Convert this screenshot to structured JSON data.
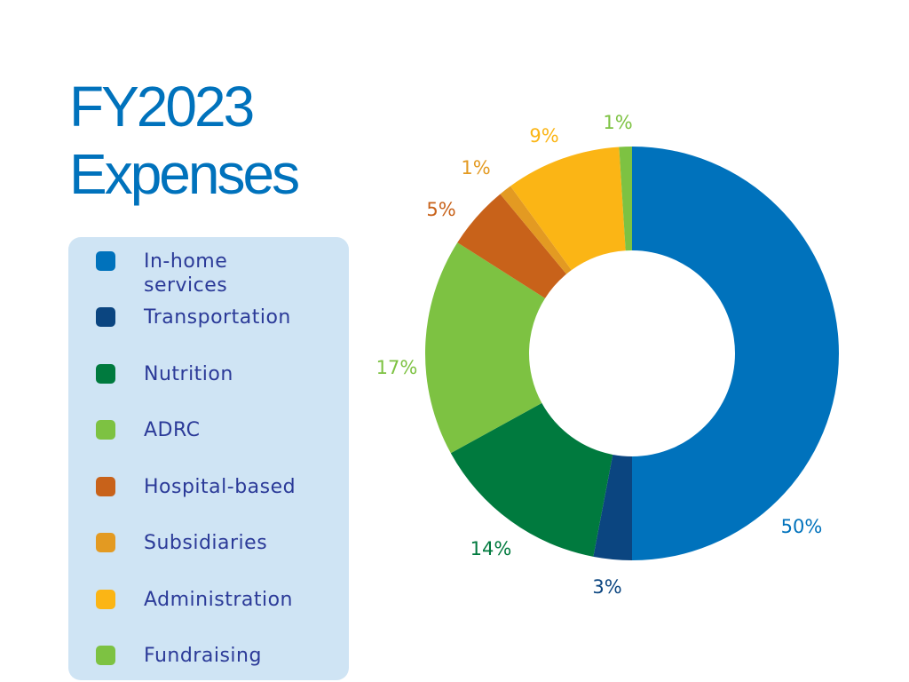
{
  "chart_data": {
    "type": "pie",
    "donut": true,
    "title_lines": [
      "FY2023",
      "Expenses"
    ],
    "categories": [
      "In-home services",
      "Transportation",
      "Nutrition",
      "ADRC",
      "Hospital-based",
      "Subsidiaries",
      "Administration",
      "Fundraising"
    ],
    "values": [
      50,
      3,
      14,
      17,
      5,
      1,
      9,
      1
    ],
    "labels": [
      "50%",
      "3%",
      "14%",
      "17%",
      "5%",
      "1%",
      "9%",
      "1%"
    ],
    "colors": [
      "#0072BC",
      "#0B4580",
      "#007A3E",
      "#7DC242",
      "#C8621A",
      "#E39A22",
      "#FBB515",
      "#7DC242"
    ],
    "legend_placement": "left"
  },
  "title": {
    "line1": "FY2023",
    "line2": "Expenses"
  },
  "legend": {
    "items": [
      {
        "line1": "In-home",
        "line2": "services"
      },
      {
        "label": "Transportation"
      },
      {
        "label": "Nutrition"
      },
      {
        "label": "ADRC"
      },
      {
        "label": "Hospital-based"
      },
      {
        "label": "Subsidiaries"
      },
      {
        "label": "Administration"
      },
      {
        "label": "Fundraising"
      }
    ]
  }
}
